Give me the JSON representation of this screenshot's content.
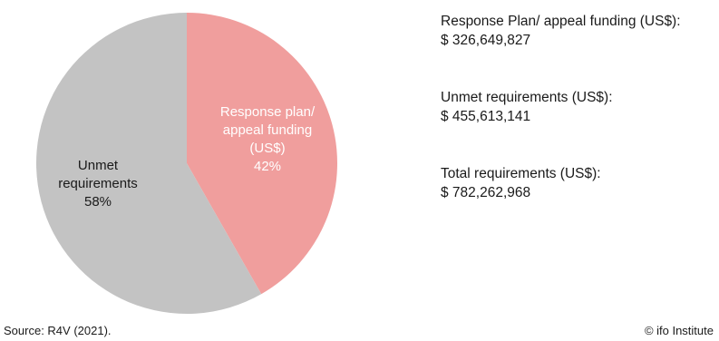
{
  "chart_data": {
    "type": "pie",
    "slices": [
      {
        "label": [
          "Response plan/",
          "appeal funding",
          "(US$)"
        ],
        "percent_label": "42%",
        "value": 326649827,
        "color": "#f09e9d",
        "text_color": "#ffffff"
      },
      {
        "label": [
          "Unmet",
          "requirements"
        ],
        "percent_label": "58%",
        "value": 455613141,
        "color": "#c3c3c3",
        "text_color": "#1a1a1a"
      }
    ]
  },
  "info": [
    {
      "label": "Response Plan/ appeal funding (US$):",
      "value": "$ 326,649,827"
    },
    {
      "label": "Unmet requirements (US$):",
      "value": "$ 455,613,141"
    },
    {
      "label": "Total requirements (US$):",
      "value": "$ 782,262,968"
    }
  ],
  "footer": {
    "source": "Source: R4V (2021).",
    "credit": "© ifo Institute"
  }
}
